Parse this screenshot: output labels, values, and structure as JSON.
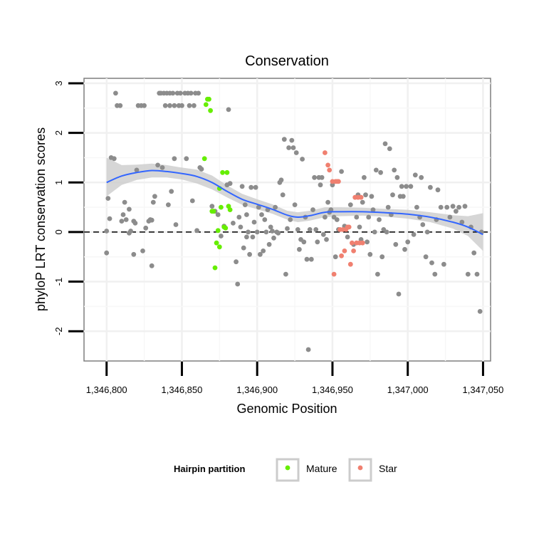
{
  "chart_data": {
    "type": "scatter",
    "title": "Conservation",
    "xlabel": "Genomic Position",
    "ylabel": "phyloP LRT conservation scores",
    "xlim": [
      1346785,
      1347055
    ],
    "ylim": [
      -2.6,
      3.1
    ],
    "x_ticks": [
      1346800,
      1346850,
      1346900,
      1346950,
      1347000,
      1347050
    ],
    "x_tick_labels": [
      "1,346,800",
      "1,346,850",
      "1,346,900",
      "1,346,950",
      "1,347,000",
      "1,347,050"
    ],
    "y_ticks": [
      -2,
      -1,
      0,
      1,
      2,
      3
    ],
    "y_tick_labels": [
      "-2",
      "-1",
      "0",
      "1",
      "2",
      "3"
    ],
    "reference_line": {
      "y": 0,
      "style": "dashed"
    },
    "legend": {
      "title": "Hairpin partition",
      "position": "bottom",
      "entries": [
        {
          "label": "Mature",
          "color": "#66ee00"
        },
        {
          "label": "Star",
          "color": "#f08070"
        }
      ]
    },
    "colors": {
      "other": "#8c8c8c",
      "Mature": "#66ee00",
      "Star": "#f08070",
      "smooth": "#3366ff",
      "band": "#cccccc"
    },
    "series": [
      {
        "name": "Other",
        "points": [
          [
            1346800,
            0.02
          ],
          [
            1346800,
            -0.42
          ],
          [
            1346801,
            0.68
          ],
          [
            1346802,
            0.27
          ],
          [
            1346803,
            1.5
          ],
          [
            1346805,
            1.48
          ],
          [
            1346806,
            2.8
          ],
          [
            1346807,
            2.55
          ],
          [
            1346809,
            2.55
          ],
          [
            1346810,
            0.22
          ],
          [
            1346811,
            0.35
          ],
          [
            1346812,
            0.6
          ],
          [
            1346813,
            0.25
          ],
          [
            1346815,
            -0.02
          ],
          [
            1346815,
            0.46
          ],
          [
            1346816,
            0.02
          ],
          [
            1346818,
            0.22
          ],
          [
            1346818,
            -0.45
          ],
          [
            1346819,
            0.18
          ],
          [
            1346820,
            1.25
          ],
          [
            1346821,
            2.55
          ],
          [
            1346823,
            2.55
          ],
          [
            1346824,
            -0.38
          ],
          [
            1346825,
            2.55
          ],
          [
            1346826,
            0.08
          ],
          [
            1346828,
            0.22
          ],
          [
            1346829,
            0.25
          ],
          [
            1346830,
            -0.68
          ],
          [
            1346830,
            0.24
          ],
          [
            1346831,
            0.6
          ],
          [
            1346832,
            0.72
          ],
          [
            1346834,
            1.35
          ],
          [
            1346835,
            2.8
          ],
          [
            1346836,
            2.8
          ],
          [
            1346837,
            1.3
          ],
          [
            1346838,
            2.8
          ],
          [
            1346839,
            2.55
          ],
          [
            1346840,
            2.8
          ],
          [
            1346841,
            0.55
          ],
          [
            1346842,
            2.8
          ],
          [
            1346842,
            2.55
          ],
          [
            1346843,
            0.82
          ],
          [
            1346844,
            2.8
          ],
          [
            1346845,
            1.48
          ],
          [
            1346845,
            2.55
          ],
          [
            1346846,
            0.15
          ],
          [
            1346847,
            2.8
          ],
          [
            1346848,
            2.55
          ],
          [
            1346849,
            2.8
          ],
          [
            1346850,
            2.55
          ],
          [
            1346852,
            2.8
          ],
          [
            1346853,
            1.48
          ],
          [
            1346854,
            2.8
          ],
          [
            1346855,
            2.55
          ],
          [
            1346856,
            2.8
          ],
          [
            1346857,
            0.63
          ],
          [
            1346858,
            2.55
          ],
          [
            1346859,
            2.8
          ],
          [
            1346860,
            0.03
          ],
          [
            1346861,
            2.8
          ],
          [
            1346862,
            1.3
          ],
          [
            1346863,
            1.27
          ],
          [
            1346870,
            0.52
          ],
          [
            1346872,
            0.42
          ],
          [
            1346874,
            0.35
          ],
          [
            1346876,
            -0.08
          ],
          [
            1346878,
            0.12
          ],
          [
            1346880,
            0.95
          ],
          [
            1346881,
            2.47
          ],
          [
            1346882,
            0.98
          ],
          [
            1346884,
            0.18
          ],
          [
            1346886,
            -0.6
          ],
          [
            1346887,
            -1.05
          ],
          [
            1346888,
            0.3
          ],
          [
            1346889,
            0.1
          ],
          [
            1346890,
            0.92
          ],
          [
            1346891,
            -0.32
          ],
          [
            1346892,
            0.55
          ],
          [
            1346893,
            0.35
          ],
          [
            1346893,
            -0.1
          ],
          [
            1346894,
            0.0
          ],
          [
            1346895,
            -0.45
          ],
          [
            1346896,
            0.9
          ],
          [
            1346897,
            -0.1
          ],
          [
            1346898,
            0.2
          ],
          [
            1346899,
            0.9
          ],
          [
            1346900,
            0.0
          ],
          [
            1346901,
            0.5
          ],
          [
            1346902,
            -0.45
          ],
          [
            1346903,
            0.35
          ],
          [
            1346904,
            -0.38
          ],
          [
            1346905,
            0.25
          ],
          [
            1346906,
            0.0
          ],
          [
            1346907,
            0.45
          ],
          [
            1346908,
            -0.25
          ],
          [
            1346909,
            0.1
          ],
          [
            1346910,
            0.02
          ],
          [
            1346911,
            -0.12
          ],
          [
            1346912,
            0.5
          ],
          [
            1346913,
            0.0
          ],
          [
            1346914,
            -0.02
          ],
          [
            1346915,
            1.0
          ],
          [
            1346916,
            1.05
          ],
          [
            1346917,
            0.75
          ],
          [
            1346918,
            1.87
          ],
          [
            1346919,
            -0.85
          ],
          [
            1346920,
            0.07
          ],
          [
            1346921,
            1.7
          ],
          [
            1346922,
            0.25
          ],
          [
            1346923,
            1.85
          ],
          [
            1346924,
            1.7
          ],
          [
            1346925,
            0.55
          ],
          [
            1346926,
            1.6
          ],
          [
            1346927,
            0.05
          ],
          [
            1346928,
            -0.35
          ],
          [
            1346929,
            -0.15
          ],
          [
            1346930,
            1.47
          ],
          [
            1346931,
            -0.2
          ],
          [
            1346932,
            0.3
          ],
          [
            1346933,
            -0.55
          ],
          [
            1346934,
            -2.37
          ],
          [
            1346935,
            0.05
          ],
          [
            1346936,
            -0.55
          ],
          [
            1346937,
            0.45
          ],
          [
            1346938,
            1.1
          ],
          [
            1346939,
            0.05
          ],
          [
            1346940,
            -0.2
          ],
          [
            1346941,
            1.1
          ],
          [
            1346942,
            0.95
          ],
          [
            1346943,
            1.1
          ],
          [
            1346944,
            -0.05
          ],
          [
            1346945,
            0.3
          ],
          [
            1346946,
            -0.15
          ],
          [
            1346947,
            0.6
          ],
          [
            1346948,
            0.4
          ],
          [
            1346949,
            0.45
          ],
          [
            1346950,
            0.95
          ],
          [
            1346951,
            0.3
          ],
          [
            1346952,
            -0.5
          ],
          [
            1346953,
            0.25
          ],
          [
            1346954,
            0.05
          ],
          [
            1346956,
            1.22
          ],
          [
            1346958,
            0.12
          ],
          [
            1346960,
            -0.1
          ],
          [
            1346962,
            0.55
          ],
          [
            1346964,
            -0.25
          ],
          [
            1346966,
            0.3
          ],
          [
            1346967,
            0.75
          ],
          [
            1346968,
            0.1
          ],
          [
            1346969,
            -0.15
          ],
          [
            1346970,
            0.6
          ],
          [
            1346971,
            1.1
          ],
          [
            1346972,
            0.75
          ],
          [
            1346973,
            -0.2
          ],
          [
            1346974,
            0.3
          ],
          [
            1346975,
            -0.45
          ],
          [
            1346976,
            0.72
          ],
          [
            1346977,
            0.45
          ],
          [
            1346978,
            0.0
          ],
          [
            1346979,
            1.25
          ],
          [
            1346980,
            -0.85
          ],
          [
            1346981,
            0.25
          ],
          [
            1346982,
            1.2
          ],
          [
            1346983,
            -0.5
          ],
          [
            1346984,
            0.05
          ],
          [
            1346985,
            1.78
          ],
          [
            1346986,
            0.0
          ],
          [
            1346987,
            0.5
          ],
          [
            1346988,
            1.68
          ],
          [
            1346989,
            0.35
          ],
          [
            1346990,
            0.75
          ],
          [
            1346991,
            1.25
          ],
          [
            1346992,
            -0.25
          ],
          [
            1346993,
            1.1
          ],
          [
            1346994,
            -1.25
          ],
          [
            1346995,
            0.72
          ],
          [
            1346996,
            0.92
          ],
          [
            1346997,
            0.72
          ],
          [
            1346998,
            -0.35
          ],
          [
            1346999,
            0.92
          ],
          [
            1347000,
            -0.2
          ],
          [
            1347002,
            0.92
          ],
          [
            1347004,
            -0.05
          ],
          [
            1347005,
            1.15
          ],
          [
            1347006,
            0.5
          ],
          [
            1347008,
            0.3
          ],
          [
            1347009,
            1.1
          ],
          [
            1347010,
            0.15
          ],
          [
            1347012,
            -0.5
          ],
          [
            1347013,
            0.0
          ],
          [
            1347015,
            0.9
          ],
          [
            1347016,
            -0.62
          ],
          [
            1347018,
            -0.85
          ],
          [
            1347019,
            0.25
          ],
          [
            1347020,
            0.85
          ],
          [
            1347022,
            0.5
          ],
          [
            1347024,
            -0.65
          ],
          [
            1347026,
            0.5
          ],
          [
            1347028,
            0.3
          ],
          [
            1347030,
            0.52
          ],
          [
            1347032,
            0.42
          ],
          [
            1347034,
            0.5
          ],
          [
            1347036,
            0.2
          ],
          [
            1347038,
            0.52
          ],
          [
            1347040,
            -0.85
          ],
          [
            1347042,
            0.1
          ],
          [
            1347044,
            -0.42
          ],
          [
            1347046,
            -0.85
          ],
          [
            1347048,
            -1.6
          ],
          [
            1347049,
            0.0
          ]
        ]
      },
      {
        "name": "Mature",
        "points": [
          [
            1346865,
            1.48
          ],
          [
            1346866,
            2.57
          ],
          [
            1346867,
            2.68
          ],
          [
            1346868,
            2.68
          ],
          [
            1346869,
            2.45
          ],
          [
            1346870,
            0.42
          ],
          [
            1346871,
            0.42
          ],
          [
            1346872,
            -0.72
          ],
          [
            1346873,
            -0.22
          ],
          [
            1346874,
            0.03
          ],
          [
            1346875,
            0.88
          ],
          [
            1346875,
            -0.3
          ],
          [
            1346876,
            0.5
          ],
          [
            1346877,
            1.2
          ],
          [
            1346878,
            0.1
          ],
          [
            1346879,
            0.08
          ],
          [
            1346880,
            1.2
          ],
          [
            1346881,
            0.52
          ],
          [
            1346882,
            0.45
          ]
        ]
      },
      {
        "name": "Star",
        "points": [
          [
            1346945,
            1.6
          ],
          [
            1346947,
            1.35
          ],
          [
            1346948,
            1.25
          ],
          [
            1346950,
            1.02
          ],
          [
            1346951,
            -0.85
          ],
          [
            1346952,
            1.02
          ],
          [
            1346953,
            1.02
          ],
          [
            1346954,
            1.02
          ],
          [
            1346955,
            0.05
          ],
          [
            1346956,
            -0.48
          ],
          [
            1346957,
            0.05
          ],
          [
            1346958,
            -0.38
          ],
          [
            1346959,
            0.05
          ],
          [
            1346960,
            0.1
          ],
          [
            1346961,
            0.1
          ],
          [
            1346962,
            -0.65
          ],
          [
            1346963,
            -0.22
          ],
          [
            1346964,
            -0.38
          ],
          [
            1346965,
            0.7
          ],
          [
            1346966,
            -0.22
          ],
          [
            1346967,
            0.7
          ],
          [
            1346968,
            -0.22
          ],
          [
            1346969,
            0.7
          ],
          [
            1346970,
            -0.22
          ]
        ]
      }
    ],
    "smooth": {
      "x": [
        1346800,
        1346810,
        1346820,
        1346830,
        1346840,
        1346850,
        1346860,
        1346870,
        1346880,
        1346890,
        1346900,
        1346910,
        1346920,
        1346927,
        1346935,
        1346945,
        1346955,
        1346970,
        1346985,
        1347000,
        1347015,
        1347030,
        1347040,
        1347050
      ],
      "y": [
        1.0,
        1.13,
        1.2,
        1.24,
        1.22,
        1.18,
        1.12,
        1.0,
        0.82,
        0.66,
        0.56,
        0.46,
        0.34,
        0.3,
        0.33,
        0.4,
        0.41,
        0.41,
        0.39,
        0.36,
        0.3,
        0.2,
        0.1,
        -0.05
      ],
      "lower": [
        0.72,
        0.95,
        1.05,
        1.1,
        1.1,
        1.06,
        0.98,
        0.86,
        0.7,
        0.55,
        0.46,
        0.37,
        0.25,
        0.2,
        0.23,
        0.3,
        0.32,
        0.33,
        0.31,
        0.27,
        0.2,
        0.07,
        -0.08,
        -0.38
      ],
      "upper": [
        1.5,
        1.35,
        1.36,
        1.38,
        1.35,
        1.3,
        1.26,
        1.14,
        0.94,
        0.77,
        0.66,
        0.56,
        0.43,
        0.4,
        0.43,
        0.5,
        0.5,
        0.49,
        0.47,
        0.45,
        0.4,
        0.34,
        0.32,
        0.38
      ]
    }
  }
}
